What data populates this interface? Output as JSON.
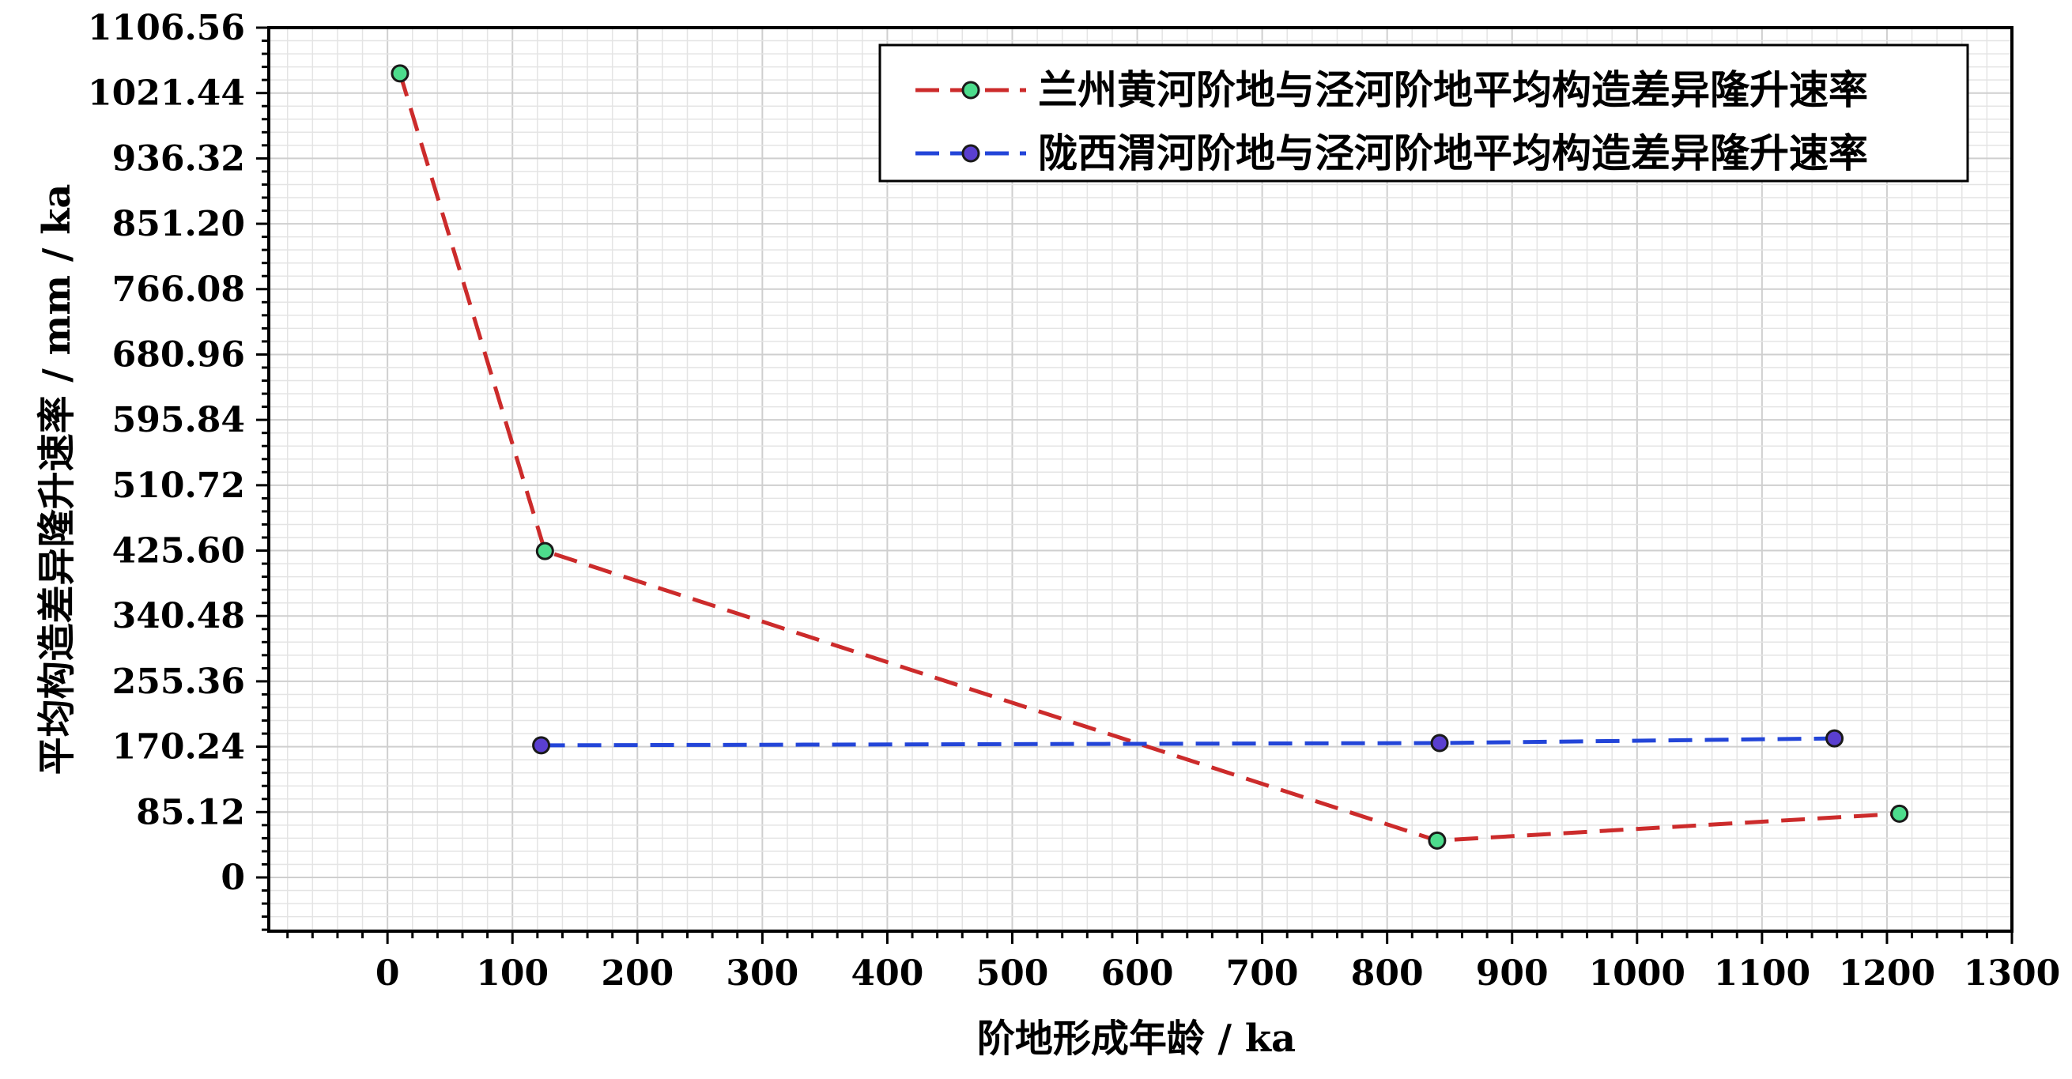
{
  "chart_data": {
    "type": "line",
    "title": "",
    "xlabel": "阶地形成年龄 / ka",
    "ylabel": "平均构造差异隆升速率 / mm / ka",
    "xlim": [
      -95,
      1300
    ],
    "ylim": [
      -70,
      1106.56
    ],
    "x_ticks": [
      0,
      100,
      200,
      300,
      400,
      500,
      600,
      700,
      800,
      900,
      1000,
      1100,
      1200,
      1300
    ],
    "y_ticks": [
      "0",
      "85.12",
      "170.24",
      "255.36",
      "340.48",
      "425.60",
      "510.72",
      "595.84",
      "680.96",
      "766.08",
      "851.20",
      "936.32",
      "1021.44",
      "1106.56"
    ],
    "grid": true,
    "legend_position": "top-right",
    "series": [
      {
        "name": "兰州黄河阶地与泾河阶地平均构造差异隆升速率",
        "color": "#cc2b2b",
        "marker_color": "#4ddc8c",
        "line_style": "dashed",
        "points": [
          {
            "x": 10,
            "y": 1047
          },
          {
            "x": 126,
            "y": 425
          },
          {
            "x": 840,
            "y": 48
          },
          {
            "x": 1210,
            "y": 83
          }
        ]
      },
      {
        "name": "陇西渭河阶地与泾河阶地平均构造差异隆升速率",
        "color": "#2345d8",
        "marker_color": "#5a3fd0",
        "line_style": "dashed",
        "points": [
          {
            "x": 123,
            "y": 172
          },
          {
            "x": 842,
            "y": 175
          },
          {
            "x": 1158,
            "y": 181
          }
        ]
      }
    ]
  }
}
